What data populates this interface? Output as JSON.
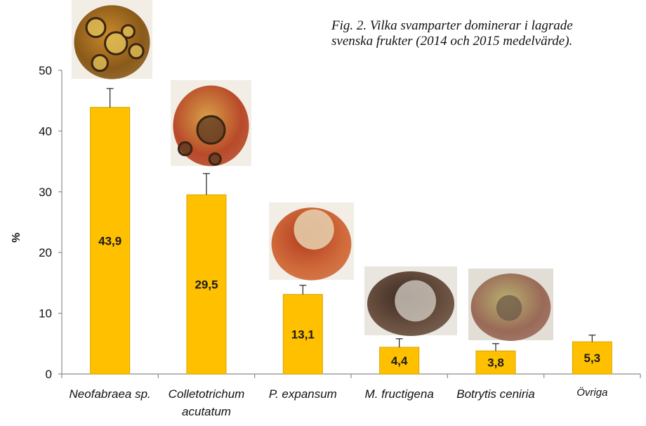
{
  "title_lines": [
    "Fig. 2. Vilka svamparter dominerar i lagrade",
    "svenska frukter (2014 och 2015 medelvärde)."
  ],
  "chart_data": {
    "type": "bar",
    "title": "Fig. 2. Vilka svamparter dominerar i lagrade svenska frukter (2014 och 2015 medelvärde).",
    "categories": [
      [
        "Neofabraea sp."
      ],
      [
        "Colletotrichum",
        "acutatum"
      ],
      [
        "P. expansum"
      ],
      [
        "M. fructigena"
      ],
      [
        "Botrytis ceniria"
      ],
      [
        "Övriga"
      ]
    ],
    "values": [
      43.9,
      29.5,
      13.1,
      4.4,
      3.8,
      5.3
    ],
    "value_labels": [
      "43,9",
      "29,5",
      "13,1",
      "4,4",
      "3,8",
      "5,3"
    ],
    "error_upper": [
      47.0,
      33.0,
      14.6,
      5.8,
      5.0,
      6.4
    ],
    "ylabel": "%",
    "xlabel": "",
    "ylim": [
      0,
      50
    ],
    "yticks": [
      0,
      10,
      20,
      30,
      40,
      50
    ],
    "grid": false,
    "legend": "none",
    "bar_color": "#ffc000",
    "bar_edge_color": "#d9a300",
    "photos": [
      {
        "subject": "apple with Neofabraea lesions",
        "colors": [
          "#c98a2a",
          "#8a5a1a",
          "#e3c45a"
        ]
      },
      {
        "subject": "apple with Colletotrichum rot",
        "colors": [
          "#d8a048",
          "#b84a2a",
          "#5a3a22"
        ]
      },
      {
        "subject": "apple with P. expansum rot",
        "colors": [
          "#b03a1e",
          "#d06a3a",
          "#e8d2b0"
        ]
      },
      {
        "subject": "apple with M. fructigena rot",
        "colors": [
          "#3a2a22",
          "#6a5040",
          "#d8d2c8"
        ]
      },
      {
        "subject": "apple with Botrytis rot",
        "colors": [
          "#b8b070",
          "#9a6a58",
          "#6e5a48"
        ]
      }
    ]
  }
}
